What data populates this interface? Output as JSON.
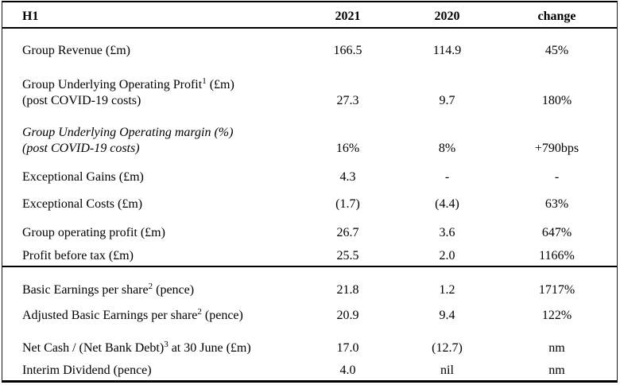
{
  "table": {
    "header": {
      "label": "H1",
      "y2021": "2021",
      "y2020": "2020",
      "change": "change"
    },
    "rows": [
      {
        "label": "Group Revenue (£m)",
        "sup": "",
        "label_after": "",
        "line2": "",
        "italic": false,
        "separator_above": false,
        "v2021": "166.5",
        "v2020": "114.9",
        "change": "45%"
      },
      {
        "label": "Group Underlying Operating Profit",
        "sup": "1",
        "label_after": " (£m)",
        "line2": "(post COVID-19 costs)",
        "italic": false,
        "separator_above": false,
        "v2021": "27.3",
        "v2020": "9.7",
        "change": "180%"
      },
      {
        "label": "Group Underlying Operating margin (%)",
        "sup": "",
        "label_after": "",
        "line2": "(post COVID-19 costs)",
        "italic": true,
        "separator_above": false,
        "v2021": "16%",
        "v2020": "8%",
        "change": "+790bps"
      },
      {
        "label": "Exceptional Gains (£m)",
        "sup": "",
        "label_after": "",
        "line2": "",
        "italic": false,
        "separator_above": false,
        "v2021": "4.3",
        "v2020": "-",
        "change": "-"
      },
      {
        "label": "Exceptional Costs (£m)",
        "sup": "",
        "label_after": "",
        "line2": "",
        "italic": false,
        "separator_above": false,
        "v2021": "(1.7)",
        "v2020": "(4.4)",
        "change": "63%"
      },
      {
        "label": "Group operating profit (£m)",
        "sup": "",
        "label_after": "",
        "line2": "",
        "italic": false,
        "separator_above": false,
        "v2021": "26.7",
        "v2020": "3.6",
        "change": "647%"
      },
      {
        "label": "Profit before tax (£m)",
        "sup": "",
        "label_after": "",
        "line2": "",
        "italic": false,
        "separator_above": false,
        "v2021": "25.5",
        "v2020": "2.0",
        "change": "1166%"
      },
      {
        "label": "Basic Earnings per share",
        "sup": "2",
        "label_after": " (pence)",
        "line2": "",
        "italic": false,
        "separator_above": true,
        "v2021": "21.8",
        "v2020": "1.2",
        "change": "1717%"
      },
      {
        "label": "Adjusted Basic Earnings per share",
        "sup": "2",
        "label_after": " (pence)",
        "line2": "",
        "italic": false,
        "separator_above": false,
        "v2021": "20.9",
        "v2020": "9.4",
        "change": "122%"
      },
      {
        "label": "Net Cash / (Net Bank Debt)",
        "sup": "3",
        "label_after": " at 30 June (£m)",
        "line2": "",
        "italic": false,
        "separator_above": false,
        "v2021": "17.0",
        "v2020": "(12.7)",
        "change": "nm"
      },
      {
        "label": "Interim Dividend (pence)",
        "sup": "",
        "label_after": "",
        "line2": "",
        "italic": false,
        "separator_above": false,
        "v2021": "4.0",
        "v2020": "nil",
        "change": "nm"
      }
    ]
  }
}
